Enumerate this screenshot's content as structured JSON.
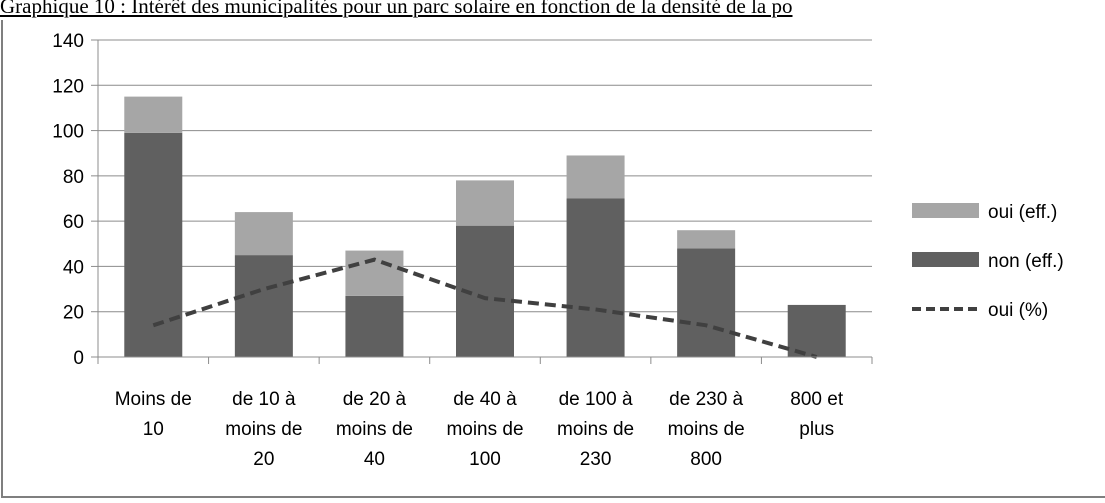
{
  "caption": "Graphique 10 : Intérêt des municipalités pour un parc solaire en fonction de la densité de la po",
  "chart_data": {
    "type": "bar",
    "stacked": true,
    "categories": [
      [
        "Moins de",
        "10"
      ],
      [
        "de 10 à",
        "moins de",
        "20"
      ],
      [
        "de 20 à",
        "moins de",
        "40"
      ],
      [
        "de 40 à",
        "moins de",
        "100"
      ],
      [
        "de 100 à",
        "moins de",
        "230"
      ],
      [
        "de 230 à",
        "moins de",
        "800"
      ],
      [
        "800 et",
        "plus"
      ]
    ],
    "series": [
      {
        "name": "non (eff.)",
        "kind": "bar",
        "color": "#606060",
        "values": [
          99,
          45,
          27,
          58,
          70,
          48,
          23
        ]
      },
      {
        "name": "oui (eff.)",
        "kind": "bar",
        "color": "#a6a6a6",
        "values": [
          16,
          19,
          20,
          20,
          19,
          8,
          0
        ]
      },
      {
        "name": "oui (%)",
        "kind": "line",
        "style": "dashed",
        "color": "#404040",
        "values": [
          14,
          30,
          43,
          26,
          21,
          14,
          0
        ]
      }
    ],
    "legend_order": [
      "oui (eff.)",
      "non (eff.)",
      "oui (%)"
    ],
    "legend_position": "right",
    "ylim": [
      0,
      140
    ],
    "yticks": [
      0,
      20,
      40,
      60,
      80,
      100,
      120,
      140
    ],
    "grid": true
  }
}
